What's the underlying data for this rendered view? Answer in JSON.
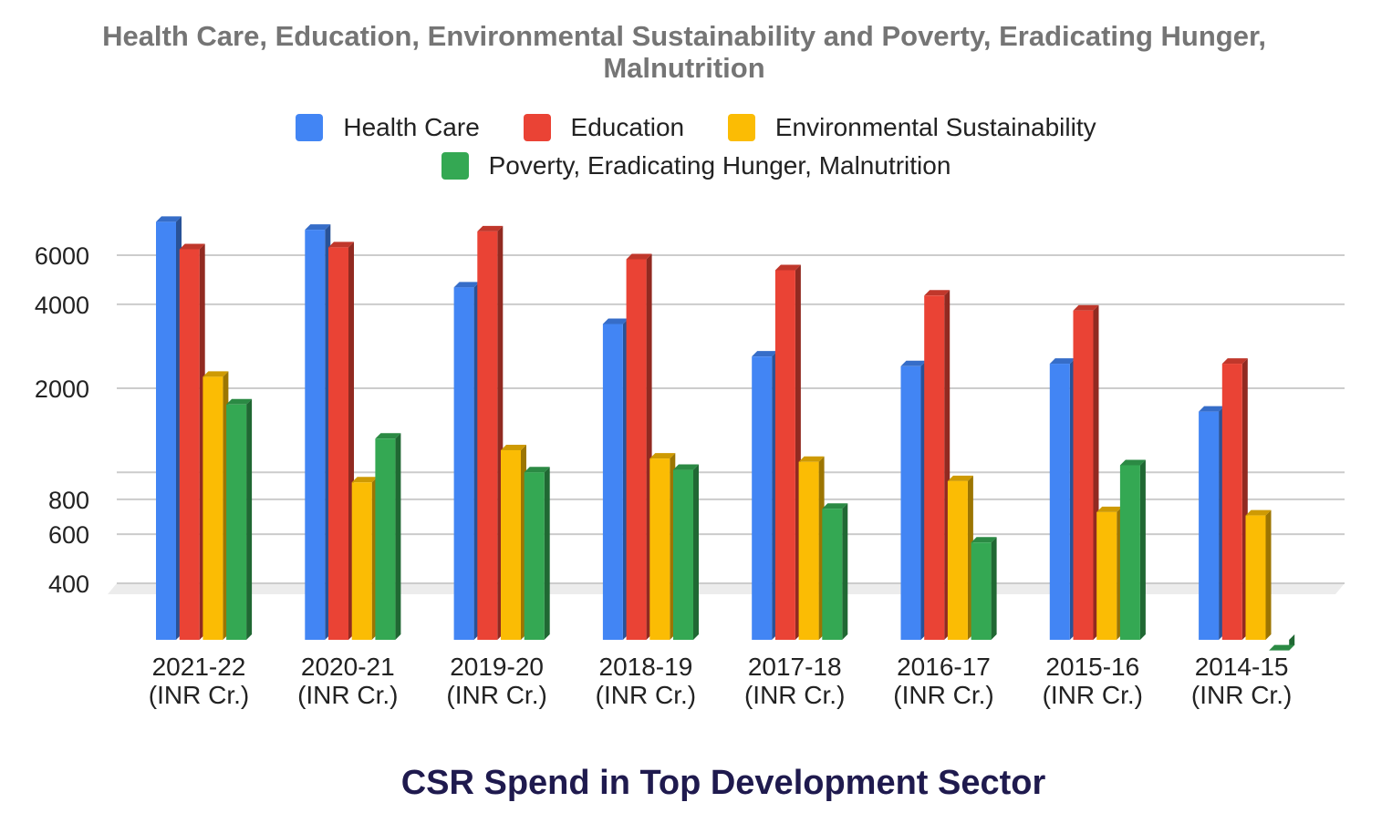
{
  "chart_data": {
    "type": "bar",
    "title": "Health Care, Education, Environmental Sustainability and Poverty, Eradicating Hunger, Malnutrition",
    "caption": "CSR Spend in Top Development Sector",
    "categories": [
      [
        "2021-22",
        "(INR Cr.)"
      ],
      [
        "2020-21",
        "(INR Cr.)"
      ],
      [
        "2019-20",
        "(INR Cr.)"
      ],
      [
        "2018-19",
        "(INR Cr.)"
      ],
      [
        "2017-18",
        "(INR Cr.)"
      ],
      [
        "2016-17",
        "(INR Cr.)"
      ],
      [
        "2015-16",
        "(INR Cr.)"
      ],
      [
        "2014-15",
        "(INR Cr.)"
      ]
    ],
    "y_ticks": [
      {
        "value": 400,
        "label": "400"
      },
      {
        "value": 600,
        "label": "600"
      },
      {
        "value": 800,
        "label": "800"
      },
      {
        "value": 1000,
        "label": ""
      },
      {
        "value": 2000,
        "label": "2000"
      },
      {
        "value": 4000,
        "label": "4000"
      },
      {
        "value": 6000,
        "label": "6000"
      }
    ],
    "y_scale": "log",
    "grid": true,
    "legend_position": "top",
    "series": [
      {
        "name": "Health Care",
        "color": "#4285f4",
        "values": [
          7900,
          7400,
          4600,
          3400,
          2600,
          2400,
          2450,
          1650
        ]
      },
      {
        "name": "Education",
        "color": "#ea4335",
        "values": [
          6300,
          6400,
          7300,
          5800,
          5300,
          4300,
          3800,
          2450
        ]
      },
      {
        "name": "Environmental Sustainability",
        "color": "#fbbc04",
        "values": [
          2200,
          920,
          1200,
          1120,
          1090,
          930,
          720,
          700
        ]
      },
      {
        "name": "Poverty, Eradicating Hunger, Malnutrition",
        "color": "#34a853",
        "values": [
          1750,
          1320,
          1000,
          1020,
          740,
          560,
          1060,
          230
        ]
      }
    ]
  }
}
